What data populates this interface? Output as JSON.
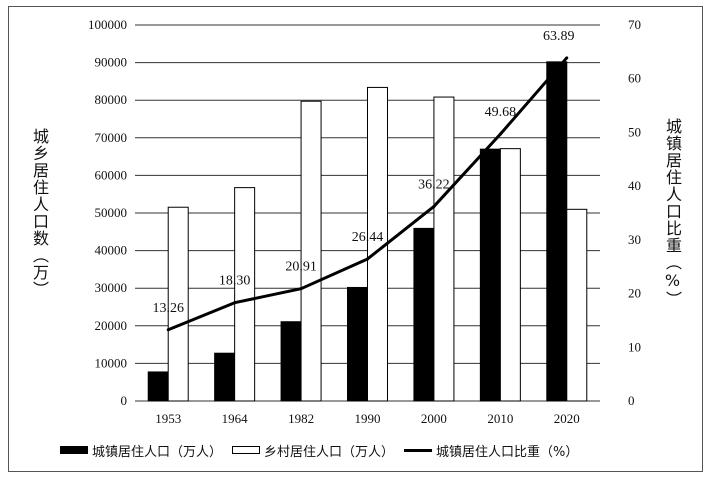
{
  "chart_data": {
    "type": "bar",
    "categories": [
      "1953",
      "1964",
      "1982",
      "1990",
      "2000",
      "2010",
      "2020"
    ],
    "series": [
      {
        "name": "城镇居住人口（万人）",
        "type": "bar",
        "axis": "left",
        "color": "#000000",
        "values": [
          7726,
          12710,
          21082,
          30195,
          45906,
          66978,
          90199
        ]
      },
      {
        "name": "乡村居住人口（万人）",
        "type": "bar",
        "axis": "left",
        "color": "#ffffff",
        "values": [
          51534,
          56748,
          79736,
          83397,
          80837,
          67113,
          50979
        ]
      },
      {
        "name": "城镇居住人口比重（%）",
        "type": "line",
        "axis": "right",
        "color": "#000000",
        "values": [
          13.26,
          18.3,
          20.91,
          26.44,
          36.22,
          49.68,
          63.89
        ],
        "labels": [
          "13.26",
          "18.30",
          "20.91",
          "26.44",
          "36.22",
          "49.68",
          "63.89"
        ]
      }
    ],
    "y_left": {
      "label": "城乡居住人口数（万）",
      "lim": [
        0,
        100000
      ],
      "ticks": [
        "0",
        "10000",
        "20000",
        "30000",
        "40000",
        "50000",
        "60000",
        "70000",
        "80000",
        "90000",
        "100000"
      ]
    },
    "y_right": {
      "label": "城镇居住人口比重（%）",
      "lim": [
        0,
        70
      ],
      "ticks": [
        "0",
        "10",
        "20",
        "30",
        "40",
        "50",
        "60",
        "70"
      ]
    },
    "grid": true,
    "legend_position": "bottom"
  }
}
